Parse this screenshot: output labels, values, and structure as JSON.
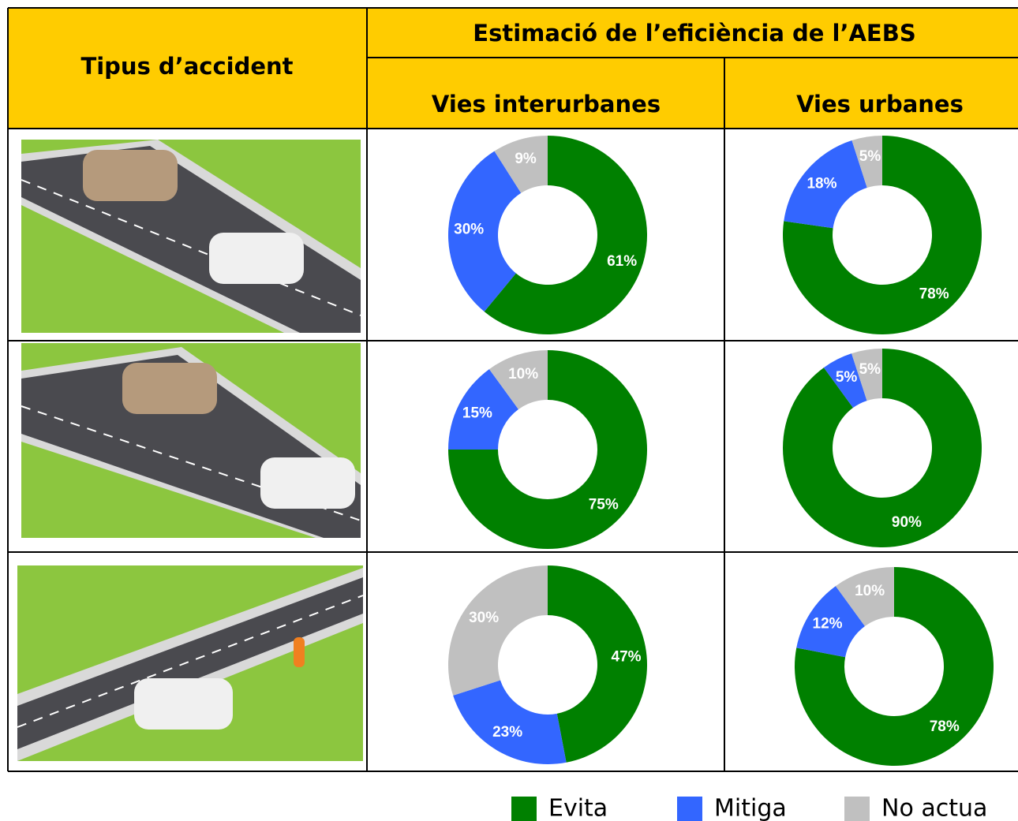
{
  "table": {
    "header": {
      "accident": "Tipus d’accident",
      "group": "Estimació de l’eficiència de l’AEBS",
      "interurban": "Vies interurbanes",
      "urban": "Vies urbanes"
    }
  },
  "legend": {
    "categories": [
      "Evita",
      "Mitiga",
      "No actua"
    ],
    "colors": [
      "#008000",
      "#3366ff",
      "#c0c0c0"
    ]
  },
  "chart_data": [
    {
      "type": "donut",
      "values": [
        61,
        30,
        9
      ],
      "value_labels": [
        "61%",
        "30%",
        "9%"
      ]
    },
    {
      "type": "donut",
      "values": [
        78,
        18,
        5
      ],
      "value_labels": [
        "78%",
        "18%",
        "5%"
      ]
    },
    {
      "type": "donut",
      "values": [
        75,
        15,
        10
      ],
      "value_labels": [
        "75%",
        "15%",
        "10%"
      ]
    },
    {
      "type": "donut",
      "values": [
        90,
        5,
        5
      ],
      "value_labels": [
        "90%",
        "5%",
        "5%"
      ]
    },
    {
      "type": "donut",
      "values": [
        47,
        23,
        30
      ],
      "value_labels": [
        "47%",
        "23%",
        "30%"
      ]
    },
    {
      "type": "donut",
      "values": [
        78,
        12,
        10
      ],
      "value_labels": [
        "78%",
        "12%",
        "10%"
      ]
    }
  ]
}
